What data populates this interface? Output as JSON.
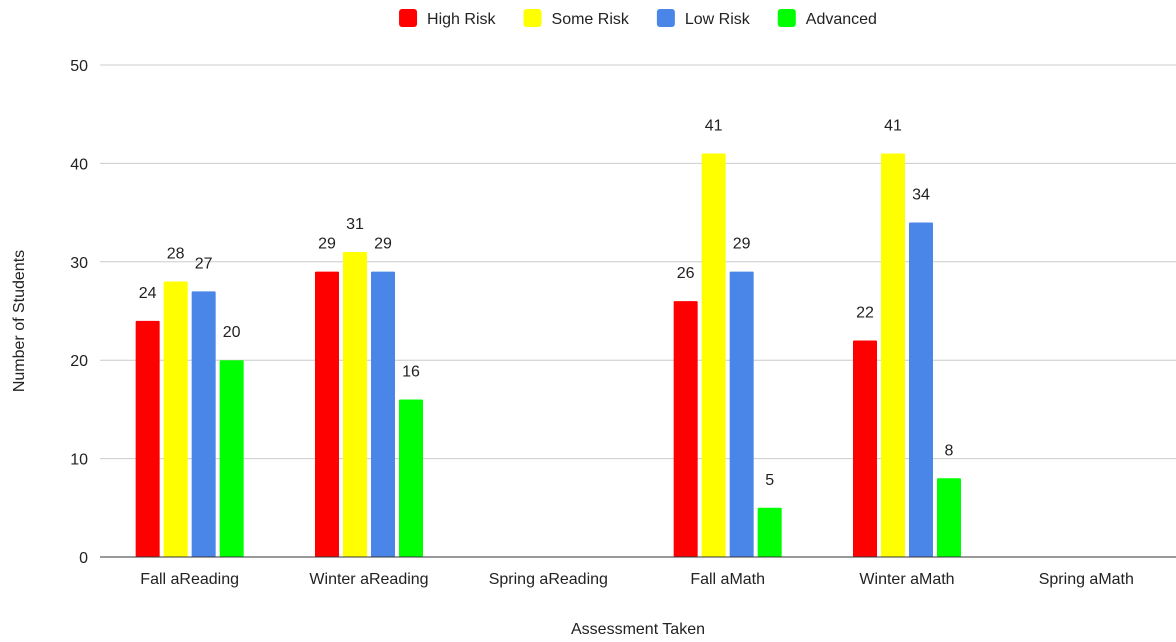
{
  "chart_data": {
    "type": "bar",
    "title": "",
    "xlabel": "Assessment Taken",
    "ylabel": "Number of Students",
    "ylim": [
      0,
      50
    ],
    "yticks": [
      0,
      10,
      20,
      30,
      40,
      50
    ],
    "grid": true,
    "legend_position": "top",
    "categories": [
      "Fall aReading",
      "Winter aReading",
      "Spring aReading",
      "Fall aMath",
      "Winter aMath",
      "Spring aMath"
    ],
    "series": [
      {
        "name": "High Risk",
        "color": "#ff0000",
        "values": [
          24,
          29,
          null,
          26,
          22,
          null
        ]
      },
      {
        "name": "Some Risk",
        "color": "#ffff00",
        "values": [
          28,
          31,
          null,
          41,
          41,
          null
        ]
      },
      {
        "name": "Low Risk",
        "color": "#4a86e8",
        "values": [
          27,
          29,
          null,
          29,
          34,
          null
        ]
      },
      {
        "name": "Advanced",
        "color": "#00ff00",
        "values": [
          20,
          16,
          null,
          5,
          8,
          null
        ]
      }
    ]
  }
}
